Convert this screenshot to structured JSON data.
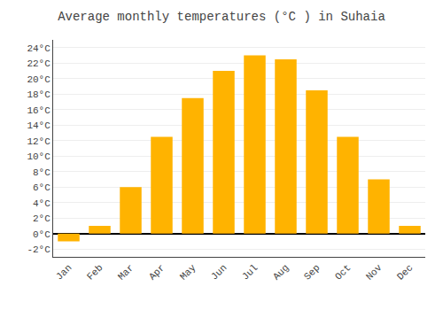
{
  "chart_data": {
    "type": "bar",
    "title": "Average monthly temperatures (°C ) in Suhaia",
    "categories": [
      "Jan",
      "Feb",
      "Mar",
      "Apr",
      "May",
      "Jun",
      "Jul",
      "Aug",
      "Sep",
      "Oct",
      "Nov",
      "Dec"
    ],
    "values": [
      -1.0,
      1.0,
      6.0,
      12.5,
      17.5,
      21.0,
      23.0,
      22.5,
      18.5,
      12.5,
      7.0,
      1.0
    ],
    "color": "#FFB300",
    "ylim": [
      -3,
      25
    ],
    "yticks": [
      {
        "value": -2,
        "label": "-2°C"
      },
      {
        "value": 0,
        "label": "0°C"
      },
      {
        "value": 2,
        "label": "2°C"
      },
      {
        "value": 4,
        "label": "4°C"
      },
      {
        "value": 6,
        "label": "6°C"
      },
      {
        "value": 8,
        "label": "8°C"
      },
      {
        "value": 10,
        "label": "10°C"
      },
      {
        "value": 12,
        "label": "12°C"
      },
      {
        "value": 14,
        "label": "14°C"
      },
      {
        "value": 16,
        "label": "16°C"
      },
      {
        "value": 18,
        "label": "18°C"
      },
      {
        "value": 20,
        "label": "20°C"
      },
      {
        "value": 22,
        "label": "22°C"
      },
      {
        "value": 24,
        "label": "24°C"
      }
    ],
    "grid": true
  }
}
